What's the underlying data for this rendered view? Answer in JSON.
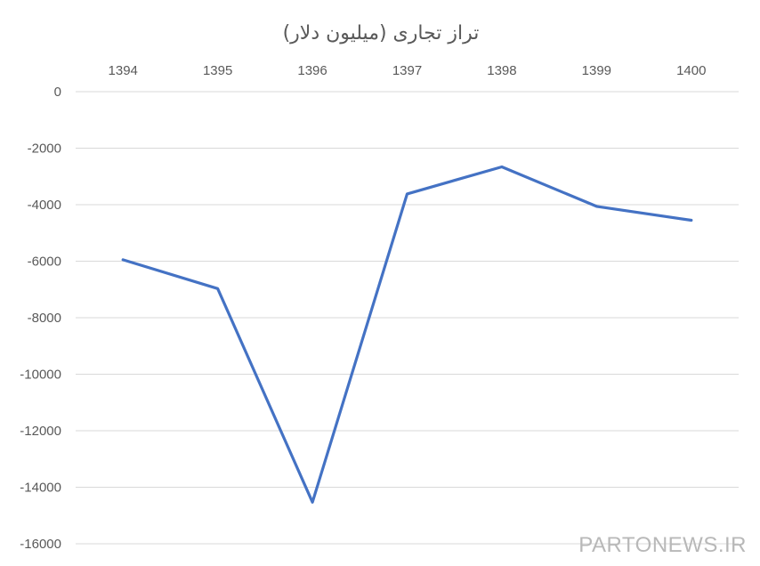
{
  "chart_data": {
    "type": "line",
    "title": "تراز تجاری (میلیون دلار)",
    "categories": [
      "1394",
      "1395",
      "1396",
      "1397",
      "1398",
      "1399",
      "1400"
    ],
    "series": [
      {
        "values": [
          -5950,
          -6970,
          -14530,
          -3620,
          -2660,
          -4060,
          -4550
        ]
      }
    ],
    "y_ticks": [
      "0",
      "-2000",
      "-4000",
      "-6000",
      "-8000",
      "-10000",
      "-12000",
      "-14000",
      "-16000"
    ],
    "ylim": [
      -16000,
      0
    ],
    "xaxis_position": "top",
    "grid": true,
    "legend": "none"
  },
  "colors": {
    "series": "#4472c4",
    "grid": "#d9d9d9",
    "text": "#595959"
  },
  "watermark": "PARTONEWS.IR"
}
